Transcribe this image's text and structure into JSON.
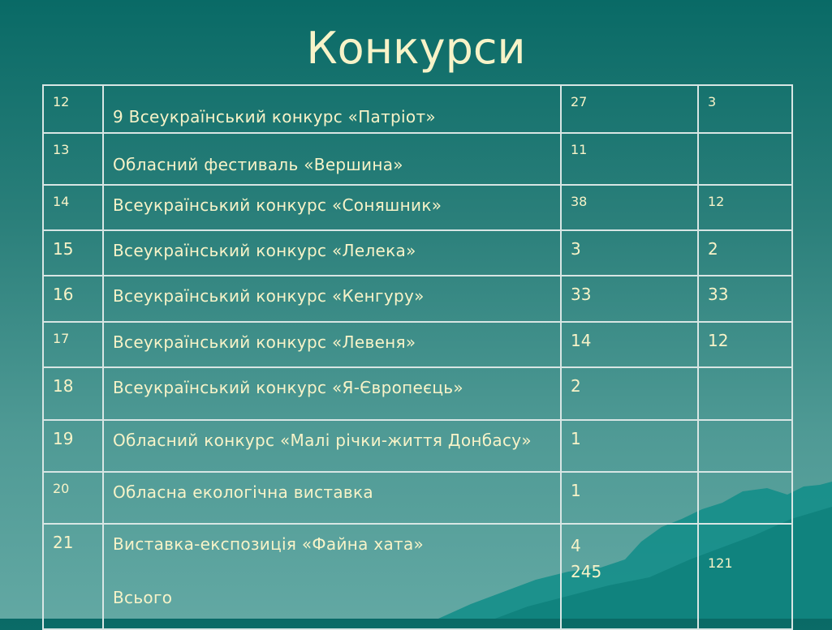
{
  "title": "Конкурси",
  "rows": [
    {
      "no": "12",
      "name": "9 Всеукраїнський конкурс «Патріот»",
      "participants": "27",
      "winners": "3"
    },
    {
      "no": "13",
      "name": "Обласний фестиваль «Вершина»",
      "participants": "11",
      "winners": ""
    },
    {
      "no": "14",
      "name": "Всеукраїнський конкурс «Соняшник»",
      "participants": "38",
      "winners": "12"
    },
    {
      "no": "15",
      "name": "Всеукраїнський конкурс «Лелека»",
      "participants": "3",
      "winners": "2"
    },
    {
      "no": "16",
      "name": "Всеукраїнський конкурс «Кенгуру»",
      "participants": "33",
      "winners": "33"
    },
    {
      "no": "17",
      "name": "Всеукраїнський конкурс «Левеня»",
      "participants": "14",
      "winners": "12"
    },
    {
      "no": "18",
      "name": "Всеукраїнський конкурс «Я-Європеєць»",
      "participants": "2",
      "winners": ""
    },
    {
      "no": "19",
      "name": "Обласний конкурс «Малі річки-життя Донбасу»",
      "participants": "1",
      "winners": ""
    },
    {
      "no": "20",
      "name": "Обласна екологічна виставка",
      "participants": "1",
      "winners": ""
    },
    {
      "no": "21",
      "name": "Виставка-експозиція «Файна хата»",
      "participants": "4",
      "winners": "",
      "total_label": "Всього",
      "total_participants": "245",
      "total_winners": "121"
    }
  ],
  "colors": {
    "background_top": "#096a66",
    "background_bottom": "#62a8a3",
    "text": "#f7f3c8",
    "table_border": "#d8e6e4",
    "mountain": "#118d88"
  }
}
